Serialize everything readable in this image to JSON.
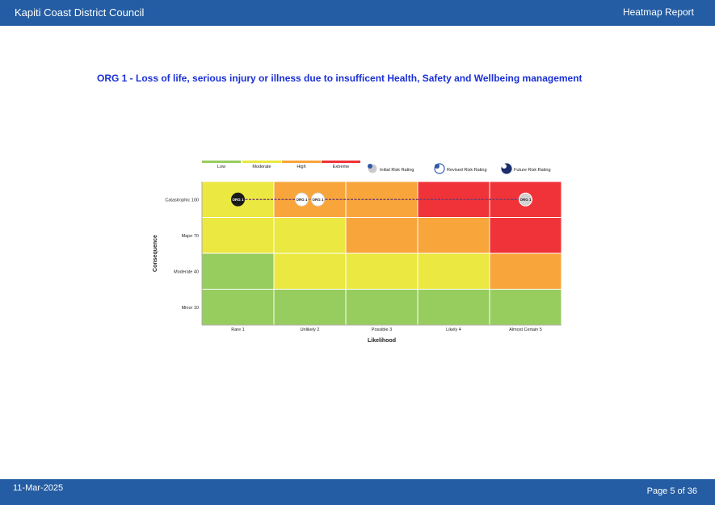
{
  "header": {
    "org": "Kapiti Coast District Council",
    "report": "Heatmap Report"
  },
  "risk_title": "ORG 1 - Loss of life, serious injury or illness due to insufficent Health, Safety and Wellbeing management",
  "footer": {
    "date": "11-Mar-2025",
    "page": "Page 5 of  36"
  },
  "colors": {
    "low": "#97cc5f",
    "moderate": "#ebe841",
    "high": "#f8a53b",
    "extreme": "#ef3338",
    "header": "#245da3"
  },
  "chart_data": {
    "type": "heatmap",
    "xlabel": "Likelihood",
    "ylabel": "Consequence",
    "x_categories": [
      "Rare 1",
      "Unlikely 2",
      "Possible 3",
      "Likely 4",
      "Almost Certain 5"
    ],
    "y_categories": [
      "Catastrophic 100",
      "Major 70",
      "Moderate 40",
      "Minor 10"
    ],
    "cells": [
      [
        "moderate",
        "high",
        "high",
        "extreme",
        "extreme"
      ],
      [
        "moderate",
        "moderate",
        "high",
        "high",
        "extreme"
      ],
      [
        "low",
        "moderate",
        "moderate",
        "moderate",
        "high"
      ],
      [
        "low",
        "low",
        "low",
        "low",
        "low"
      ]
    ],
    "legend_levels": [
      "Low",
      "Moderate",
      "High",
      "Extreme"
    ],
    "legend_markers": [
      "Initial Risk Rating",
      "Revised Risk Rating",
      "Future Risk Rating"
    ],
    "points": [
      {
        "label": "ORG 1",
        "type": "future",
        "x": "Rare 1",
        "y": "Catastrophic 100"
      },
      {
        "label": "ORG 1",
        "type": "revised",
        "x": "Unlikely 2",
        "y": "Catastrophic 100"
      },
      {
        "label": "ORG 1",
        "type": "revised",
        "x": "Unlikely 2",
        "y": "Catastrophic 100"
      },
      {
        "label": "ORG 1",
        "type": "initial",
        "x": "Almost Certain 5",
        "y": "Catastrophic 100"
      }
    ]
  }
}
